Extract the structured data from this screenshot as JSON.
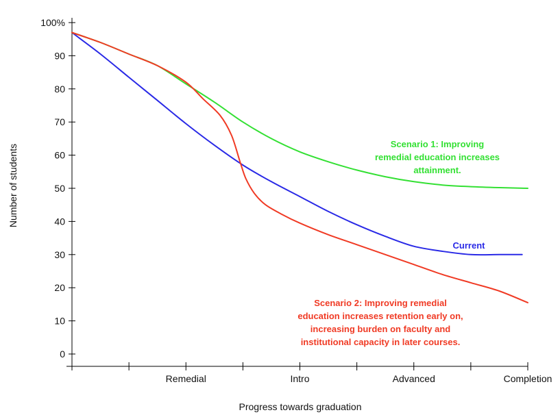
{
  "chart_data": {
    "type": "line",
    "title": "",
    "xlabel": "Progress towards graduation",
    "ylabel": "Number of students",
    "ylim": [
      0,
      100
    ],
    "x_ticks": [
      {
        "x": 0.0,
        "label": ""
      },
      {
        "x": 1.0,
        "label": ""
      },
      {
        "x": 2.0,
        "label": "Remedial"
      },
      {
        "x": 3.0,
        "label": ""
      },
      {
        "x": 4.0,
        "label": "Intro"
      },
      {
        "x": 5.0,
        "label": ""
      },
      {
        "x": 6.0,
        "label": "Advanced"
      },
      {
        "x": 7.0,
        "label": ""
      },
      {
        "x": 8.0,
        "label": "Completion"
      }
    ],
    "y_ticks": [
      {
        "value": 0,
        "label": "0"
      },
      {
        "value": 10,
        "label": "10"
      },
      {
        "value": 20,
        "label": "20"
      },
      {
        "value": 30,
        "label": "30"
      },
      {
        "value": 40,
        "label": "40"
      },
      {
        "value": 50,
        "label": "50"
      },
      {
        "value": 60,
        "label": "60"
      },
      {
        "value": 70,
        "label": "70"
      },
      {
        "value": 80,
        "label": "80"
      },
      {
        "value": 90,
        "label": "90"
      },
      {
        "value": 100,
        "label": "100%"
      }
    ],
    "series": [
      {
        "name": "Current",
        "color": "#2929e6",
        "x": [
          0.0,
          0.5,
          1.0,
          1.5,
          2.0,
          2.5,
          3.0,
          3.5,
          4.0,
          4.5,
          5.0,
          5.5,
          6.0,
          6.5,
          7.0,
          7.5,
          7.9
        ],
        "y": [
          97,
          90.5,
          83.5,
          76.5,
          69.5,
          63,
          57,
          52,
          47.5,
          43,
          39,
          35.5,
          32.5,
          31,
          30,
          30,
          30
        ]
      },
      {
        "name": "Scenario 1: Improving remedial education increases attainment.",
        "color": "#33e033",
        "x": [
          0.0,
          0.5,
          1.0,
          1.5,
          2.0,
          2.5,
          3.0,
          3.5,
          4.0,
          4.5,
          5.0,
          5.5,
          6.0,
          6.5,
          7.0,
          7.5,
          8.0
        ],
        "y": [
          97,
          94,
          90.5,
          87,
          81.5,
          76,
          70,
          65,
          61,
          58,
          55.5,
          53.5,
          52,
          51,
          50.5,
          50.2,
          50
        ]
      },
      {
        "name": "Scenario 2: Improving remedial education increases retention early on, increasing burden on faculty and institutional capacity in later courses.",
        "color": "#f03a24",
        "x": [
          0.0,
          0.5,
          1.0,
          1.5,
          2.0,
          2.3,
          2.6,
          2.8,
          2.95,
          3.05,
          3.2,
          3.4,
          3.7,
          4.0,
          4.5,
          5.0,
          5.5,
          6.0,
          6.5,
          7.0,
          7.5,
          8.0
        ],
        "y": [
          97,
          94,
          90.5,
          87,
          82,
          77,
          72,
          66,
          58,
          53,
          48.5,
          45,
          42,
          39.5,
          36,
          33,
          30,
          27,
          24,
          21.5,
          19,
          15.5
        ]
      }
    ],
    "annotations": [
      {
        "series": 1,
        "lines": [
          "Scenario 1: Improving",
          "remedial education increases",
          "attainment."
        ],
        "color": "#33e033"
      },
      {
        "series": 0,
        "lines": [
          "Current"
        ],
        "color": "#2929e6"
      },
      {
        "series": 2,
        "lines": [
          "Scenario 2: Improving remedial",
          "education increases retention early on,",
          "increasing burden on faculty and",
          "institutional capacity in later courses."
        ],
        "color": "#f03a24"
      }
    ]
  }
}
